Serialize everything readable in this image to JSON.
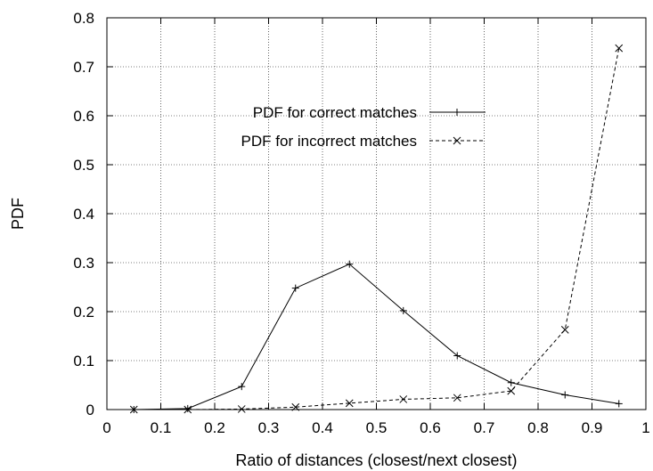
{
  "chart_data": {
    "type": "line",
    "title": "",
    "xlabel": "Ratio of distances (closest/next closest)",
    "ylabel": "PDF",
    "xlim": [
      0,
      1
    ],
    "ylim": [
      0,
      0.8
    ],
    "xticks": [
      "0",
      "0.1",
      "0.2",
      "0.3",
      "0.4",
      "0.5",
      "0.6",
      "0.7",
      "0.8",
      "0.9",
      "1"
    ],
    "yticks": [
      "0",
      "0.1",
      "0.2",
      "0.3",
      "0.4",
      "0.5",
      "0.6",
      "0.7",
      "0.8"
    ],
    "grid": true,
    "legend_position": "upper-center",
    "series": [
      {
        "name": "PDF for correct matches",
        "line_style": "solid",
        "marker": "plus",
        "color": "#000000",
        "x": [
          0.05,
          0.15,
          0.25,
          0.35,
          0.45,
          0.55,
          0.65,
          0.75,
          0.85,
          0.95
        ],
        "y": [
          0.0,
          0.002,
          0.047,
          0.248,
          0.297,
          0.202,
          0.11,
          0.055,
          0.03,
          0.012
        ]
      },
      {
        "name": "PDF for incorrect matches",
        "line_style": "dashed",
        "marker": "cross",
        "color": "#000000",
        "x": [
          0.05,
          0.15,
          0.25,
          0.35,
          0.45,
          0.55,
          0.65,
          0.75,
          0.85,
          0.95
        ],
        "y": [
          0.0,
          0.0,
          0.001,
          0.005,
          0.013,
          0.021,
          0.024,
          0.038,
          0.163,
          0.738
        ]
      }
    ]
  }
}
